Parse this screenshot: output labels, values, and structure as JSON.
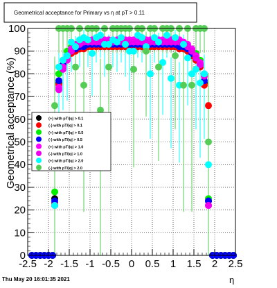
{
  "chart_data": {
    "type": "scatter",
    "title": "Geometrical acceptance for Primary vs  η at pT > 0.11",
    "xlabel": "η",
    "ylabel": "Geometrical acceptance (%)",
    "xlim": [
      -2.5,
      2.5
    ],
    "ylim": [
      0,
      100
    ],
    "x_ticks": [
      "-2.5",
      "-2",
      "-1.5",
      "-1",
      "-0.5",
      "0",
      "0.5",
      "1",
      "1.5",
      "2",
      "2.5"
    ],
    "y_ticks": [
      "0",
      "10",
      "20",
      "30",
      "40",
      "50",
      "60",
      "70",
      "80",
      "90",
      "100"
    ],
    "grid": true,
    "legend_position": "left",
    "series": [
      {
        "name": "(+) with pT/|q| > 0.1",
        "color": "#000000",
        "x": [
          -1.85,
          -1.75,
          -1.65,
          -1.55,
          -1.45,
          -1.35,
          -1.25,
          -1.15,
          -1.05,
          -0.95,
          -0.85,
          -0.75,
          -0.65,
          -0.55,
          -0.45,
          -0.35,
          -0.25,
          -0.15,
          -0.05,
          0.05,
          0.15,
          0.25,
          0.35,
          0.45,
          0.55,
          0.65,
          0.75,
          0.85,
          0.95,
          1.05,
          1.15,
          1.25,
          1.35,
          1.45,
          1.55,
          1.65,
          1.75,
          1.85
        ],
        "y": [
          25,
          76,
          84,
          88,
          90,
          91,
          91,
          92,
          92,
          92,
          92,
          92,
          92,
          92,
          92,
          92,
          92,
          92,
          92,
          92,
          92,
          92,
          92,
          92,
          92,
          92,
          92,
          92,
          92,
          92,
          92,
          91,
          90,
          89,
          87,
          84,
          76,
          24
        ]
      },
      {
        "name": "(-) with pT/|q| > 0.1",
        "color": "#ff0000",
        "x": [
          -1.85,
          -1.75,
          -1.65,
          -1.55,
          -1.45,
          -1.35,
          -1.25,
          -1.15,
          -1.05,
          -0.95,
          -0.85,
          -0.75,
          -0.65,
          -0.55,
          -0.45,
          -0.35,
          -0.25,
          -0.15,
          -0.05,
          0.05,
          0.15,
          0.25,
          0.35,
          0.45,
          0.55,
          0.65,
          0.75,
          0.85,
          0.95,
          1.05,
          1.15,
          1.25,
          1.35,
          1.45,
          1.55,
          1.65,
          1.75,
          1.85
        ],
        "y": [
          23,
          75,
          83,
          87,
          89,
          90,
          91,
          91,
          92,
          92,
          92,
          92,
          92,
          92,
          92,
          92,
          92,
          92,
          92,
          92,
          92,
          92,
          92,
          92,
          92,
          92,
          92,
          92,
          92,
          92,
          91,
          91,
          90,
          88,
          86,
          83,
          75,
          66
        ]
      },
      {
        "name": "(+) with pT/|q| > 0.5",
        "color": "#00ee00",
        "x": [
          -1.85,
          -1.75,
          -1.65,
          -1.55,
          -1.45,
          -1.35,
          -1.25,
          -1.15,
          -1.05,
          -0.95,
          -0.85,
          -0.75,
          -0.65,
          -0.55,
          -0.45,
          -0.35,
          -0.25,
          -0.15,
          -0.05,
          0.05,
          0.15,
          0.25,
          0.35,
          0.45,
          0.55,
          0.65,
          0.75,
          0.85,
          0.95,
          1.05,
          1.15,
          1.25,
          1.35,
          1.45,
          1.55,
          1.65,
          1.75,
          1.85
        ],
        "y": [
          28,
          80,
          86,
          90,
          92,
          93,
          93,
          94,
          94,
          94,
          94,
          94,
          94,
          94,
          94,
          94,
          94,
          94,
          94,
          94,
          94,
          94,
          94,
          94,
          94,
          94,
          94,
          94,
          94,
          94,
          94,
          93,
          92,
          91,
          89,
          86,
          80,
          25
        ]
      },
      {
        "name": "(-) with pT/|q| > 0.5",
        "color": "#0000ff",
        "x": [
          -1.85,
          -1.75,
          -1.65,
          -1.55,
          -1.45,
          -1.35,
          -1.25,
          -1.15,
          -1.05,
          -0.95,
          -0.85,
          -0.75,
          -0.65,
          -0.55,
          -0.45,
          -0.35,
          -0.25,
          -0.15,
          -0.05,
          0.05,
          0.15,
          0.25,
          0.35,
          0.45,
          0.55,
          0.65,
          0.75,
          0.85,
          0.95,
          1.05,
          1.15,
          1.25,
          1.35,
          1.45,
          1.55,
          1.65,
          1.75,
          1.85
        ],
        "y": [
          24,
          77,
          84,
          88,
          90,
          91,
          92,
          92,
          93,
          93,
          93,
          93,
          93,
          93,
          93,
          93,
          93,
          93,
          93,
          93,
          93,
          93,
          93,
          93,
          93,
          93,
          93,
          93,
          93,
          93,
          92,
          92,
          91,
          89,
          87,
          84,
          77,
          24
        ]
      },
      {
        "name": "(+) with pT/|q| > 1.0",
        "color": "#ff00ff",
        "x": [
          -1.85,
          -1.75,
          -1.65,
          -1.55,
          -1.45,
          -1.35,
          -1.25,
          -1.15,
          -1.05,
          -0.95,
          -0.85,
          -0.75,
          -0.65,
          -0.55,
          -0.45,
          -0.35,
          -0.25,
          -0.15,
          -0.05,
          0.05,
          0.15,
          0.25,
          0.35,
          0.45,
          0.55,
          0.65,
          0.75,
          0.85,
          0.95,
          1.05,
          1.15,
          1.25,
          1.35,
          1.45,
          1.55,
          1.65,
          1.75,
          1.85
        ],
        "y": [
          22,
          74,
          83,
          87,
          91,
          93,
          94,
          95,
          95,
          95,
          95,
          95,
          95,
          95,
          95,
          95,
          95,
          95,
          95,
          95,
          95,
          95,
          95,
          95,
          95,
          95,
          95,
          95,
          95,
          95,
          95,
          94,
          93,
          91,
          88,
          85,
          80,
          22
        ]
      },
      {
        "name": "(-) with pT/|q| > 1.0",
        "color": "#ee00ee",
        "x": [
          -1.85,
          -1.75,
          -1.65,
          -1.55,
          -1.45,
          -1.35,
          -1.25,
          -1.15,
          -1.05,
          -0.95,
          -0.85,
          -0.75,
          -0.65,
          -0.55,
          -0.45,
          -0.35,
          -0.25,
          -0.15,
          -0.05,
          0.05,
          0.15,
          0.25,
          0.35,
          0.45,
          0.55,
          0.65,
          0.75,
          0.85,
          0.95,
          1.05,
          1.15,
          1.25,
          1.35,
          1.45,
          1.55,
          1.65,
          1.75,
          1.85
        ],
        "y": [
          22,
          73,
          82,
          86,
          90,
          92,
          93,
          94,
          94,
          94,
          94,
          94,
          94,
          94,
          94,
          94,
          94,
          94,
          94,
          94,
          94,
          94,
          94,
          94,
          94,
          94,
          94,
          94,
          94,
          94,
          94,
          93,
          92,
          90,
          87,
          84,
          79,
          22
        ]
      },
      {
        "name": "(+) with pT/|q| > 2.0",
        "color": "#00ffff",
        "x": [
          -1.85,
          -1.75,
          -1.65,
          -1.55,
          -1.45,
          -1.35,
          -1.25,
          -1.15,
          -1.05,
          -0.95,
          -0.85,
          -0.75,
          -0.65,
          -0.55,
          -0.45,
          -0.35,
          -0.25,
          -0.15,
          -0.05,
          0.05,
          0.15,
          0.25,
          0.35,
          0.45,
          0.55,
          0.65,
          0.75,
          0.85,
          0.95,
          1.05,
          1.15,
          1.25,
          1.35,
          1.45,
          1.55,
          1.65,
          1.75,
          1.85
        ],
        "y": [
          22,
          83,
          86,
          88,
          94,
          92,
          95,
          96,
          95,
          89,
          96,
          97,
          93,
          93,
          95,
          94,
          96,
          93,
          90,
          90,
          97,
          96,
          92,
          80,
          96,
          94,
          85,
          97,
          78,
          96,
          75,
          93,
          87,
          80,
          82,
          76,
          80,
          40
        ]
      },
      {
        "name": "(-) with pT/|q| > 2.0",
        "color": "#55cc55",
        "x": [
          -1.85,
          -1.75,
          -1.65,
          -1.55,
          -1.45,
          -1.35,
          -1.25,
          -1.15,
          -1.05,
          -0.95,
          -0.85,
          -0.75,
          -0.65,
          -0.55,
          -0.45,
          -0.35,
          -0.25,
          -0.15,
          -0.05,
          0.05,
          0.15,
          0.25,
          0.35,
          0.45,
          0.55,
          0.65,
          0.75,
          0.85,
          0.95,
          1.05,
          1.15,
          1.25,
          1.35,
          1.45,
          1.55,
          1.65,
          1.75,
          1.85
        ],
        "y": [
          66,
          100,
          100,
          100,
          100,
          83,
          100,
          75,
          100,
          100,
          100,
          64,
          100,
          83,
          100,
          100,
          100,
          100,
          100,
          82,
          100,
          100,
          90,
          100,
          100,
          83,
          100,
          100,
          100,
          88,
          100,
          75,
          100,
          75,
          100,
          100,
          100,
          50
        ]
      }
    ],
    "edge_markers": [
      {
        "x": -2.4,
        "y": 0
      },
      {
        "x": -2.3,
        "y": 0
      },
      {
        "x": -2.2,
        "y": 0
      },
      {
        "x": -2.1,
        "y": 0
      },
      {
        "x": -2.0,
        "y": 0
      },
      {
        "x": -1.9,
        "y": 0
      },
      {
        "x": 1.95,
        "y": 0
      },
      {
        "x": 2.05,
        "y": 0
      },
      {
        "x": 2.15,
        "y": 0
      },
      {
        "x": 2.25,
        "y": 0
      },
      {
        "x": 2.35,
        "y": 0
      },
      {
        "x": 2.45,
        "y": 0
      }
    ]
  },
  "footer": {
    "timestamp": "Thu May 20 16:01:35 2021"
  }
}
